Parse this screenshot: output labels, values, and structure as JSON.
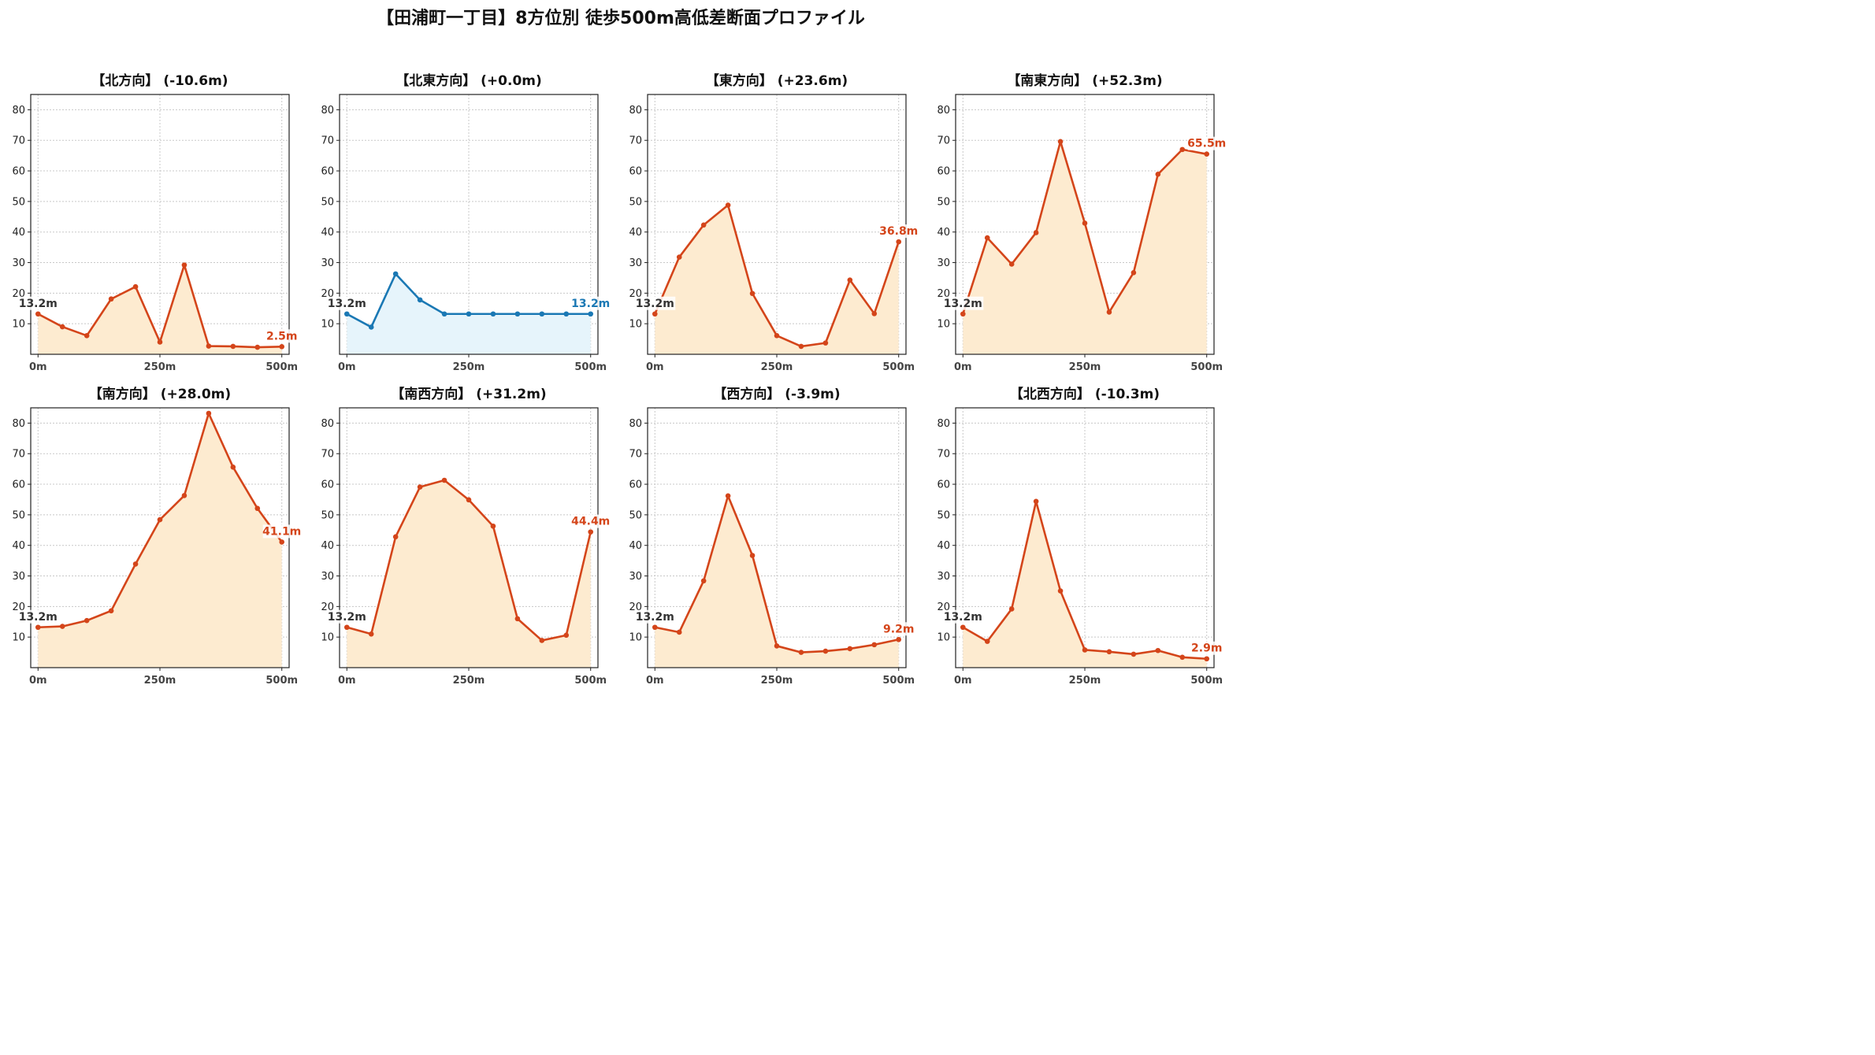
{
  "title": "【田浦町一丁目】8方位別 徒歩500m高低差断面プロファイル",
  "colors": {
    "descend_or_up": "#d4451a",
    "descend_or_up_fill": "#fdebd0",
    "flat": "#1a78b4",
    "flat_fill": "#e6f4fb"
  },
  "chart_data": [
    {
      "type": "area",
      "title": "【北方向】 (-10.6m)",
      "x": [
        0,
        50,
        100,
        150,
        200,
        250,
        300,
        350,
        400,
        450,
        500
      ],
      "values": [
        13.2,
        9.0,
        6.1,
        18.1,
        22.1,
        4.0,
        29.2,
        2.7,
        2.6,
        2.3,
        2.5
      ],
      "xticks": [
        "0m",
        "250m",
        "500m"
      ],
      "yticks": [
        10,
        20,
        30,
        40,
        50,
        60,
        70,
        80
      ],
      "ylim": [
        0,
        85
      ],
      "xlim": [
        -15,
        515
      ],
      "start_label": "13.2m",
      "end_label": "2.5m",
      "style": "up",
      "grid": true
    },
    {
      "type": "area",
      "title": "【北東方向】 (+0.0m)",
      "x": [
        0,
        50,
        100,
        150,
        200,
        250,
        300,
        350,
        400,
        450,
        500
      ],
      "values": [
        13.2,
        8.9,
        26.3,
        17.8,
        13.2,
        13.2,
        13.2,
        13.2,
        13.2,
        13.2,
        13.2
      ],
      "xticks": [
        "0m",
        "250m",
        "500m"
      ],
      "yticks": [
        10,
        20,
        30,
        40,
        50,
        60,
        70,
        80
      ],
      "ylim": [
        0,
        85
      ],
      "xlim": [
        -15,
        515
      ],
      "start_label": "13.2m",
      "end_label": "13.2m",
      "style": "flat",
      "grid": true
    },
    {
      "type": "area",
      "title": "【東方向】 (+23.6m)",
      "x": [
        0,
        50,
        100,
        150,
        200,
        250,
        300,
        350,
        400,
        450,
        500
      ],
      "values": [
        13.2,
        31.8,
        42.3,
        48.8,
        19.9,
        6.1,
        2.6,
        3.7,
        24.3,
        13.3,
        36.8
      ],
      "xticks": [
        "0m",
        "250m",
        "500m"
      ],
      "yticks": [
        10,
        20,
        30,
        40,
        50,
        60,
        70,
        80
      ],
      "ylim": [
        0,
        85
      ],
      "xlim": [
        -15,
        515
      ],
      "start_label": "13.2m",
      "end_label": "36.8m",
      "style": "up",
      "grid": true
    },
    {
      "type": "area",
      "title": "【南東方向】 (+52.3m)",
      "x": [
        0,
        50,
        100,
        150,
        200,
        250,
        300,
        350,
        400,
        450,
        500
      ],
      "values": [
        13.2,
        38.1,
        29.5,
        39.8,
        69.6,
        42.9,
        13.8,
        26.7,
        58.9,
        67.0,
        65.5
      ],
      "xticks": [
        "0m",
        "250m",
        "500m"
      ],
      "yticks": [
        10,
        20,
        30,
        40,
        50,
        60,
        70,
        80
      ],
      "ylim": [
        0,
        85
      ],
      "xlim": [
        -15,
        515
      ],
      "start_label": "13.2m",
      "end_label": "65.5m",
      "style": "up",
      "grid": true
    },
    {
      "type": "area",
      "title": "【南方向】 (+28.0m)",
      "x": [
        0,
        50,
        100,
        150,
        200,
        250,
        300,
        350,
        400,
        450,
        500
      ],
      "values": [
        13.2,
        13.5,
        15.4,
        18.6,
        33.9,
        48.4,
        56.3,
        83.2,
        65.6,
        52.1,
        41.1
      ],
      "xticks": [
        "0m",
        "250m",
        "500m"
      ],
      "yticks": [
        10,
        20,
        30,
        40,
        50,
        60,
        70,
        80
      ],
      "ylim": [
        0,
        85
      ],
      "xlim": [
        -15,
        515
      ],
      "start_label": "13.2m",
      "end_label": "41.1m",
      "style": "up",
      "grid": true
    },
    {
      "type": "area",
      "title": "【南西方向】 (+31.2m)",
      "x": [
        0,
        50,
        100,
        150,
        200,
        250,
        300,
        350,
        400,
        450,
        500
      ],
      "values": [
        13.2,
        11.0,
        42.8,
        59.1,
        61.3,
        54.9,
        46.3,
        16.0,
        8.9,
        10.6,
        44.4
      ],
      "xticks": [
        "0m",
        "250m",
        "500m"
      ],
      "yticks": [
        10,
        20,
        30,
        40,
        50,
        60,
        70,
        80
      ],
      "ylim": [
        0,
        85
      ],
      "xlim": [
        -15,
        515
      ],
      "start_label": "13.2m",
      "end_label": "44.4m",
      "style": "up",
      "grid": true
    },
    {
      "type": "area",
      "title": "【西方向】 (-3.9m)",
      "x": [
        0,
        50,
        100,
        150,
        200,
        250,
        300,
        350,
        400,
        450,
        500
      ],
      "values": [
        13.2,
        11.6,
        28.4,
        56.2,
        36.7,
        7.1,
        5.0,
        5.4,
        6.2,
        7.5,
        9.2
      ],
      "xticks": [
        "0m",
        "250m",
        "500m"
      ],
      "yticks": [
        10,
        20,
        30,
        40,
        50,
        60,
        70,
        80
      ],
      "ylim": [
        0,
        85
      ],
      "xlim": [
        -15,
        515
      ],
      "start_label": "13.2m",
      "end_label": "9.2m",
      "style": "up",
      "grid": true
    },
    {
      "type": "area",
      "title": "【北西方向】 (-10.3m)",
      "x": [
        0,
        50,
        100,
        150,
        200,
        250,
        300,
        350,
        400,
        450,
        500
      ],
      "values": [
        13.2,
        8.6,
        19.2,
        54.4,
        25.1,
        5.8,
        5.2,
        4.4,
        5.6,
        3.4,
        2.9
      ],
      "xticks": [
        "0m",
        "250m",
        "500m"
      ],
      "yticks": [
        10,
        20,
        30,
        40,
        50,
        60,
        70,
        80
      ],
      "ylim": [
        0,
        85
      ],
      "xlim": [
        -15,
        515
      ],
      "start_label": "13.2m",
      "end_label": "2.9m",
      "style": "up",
      "grid": true
    }
  ]
}
